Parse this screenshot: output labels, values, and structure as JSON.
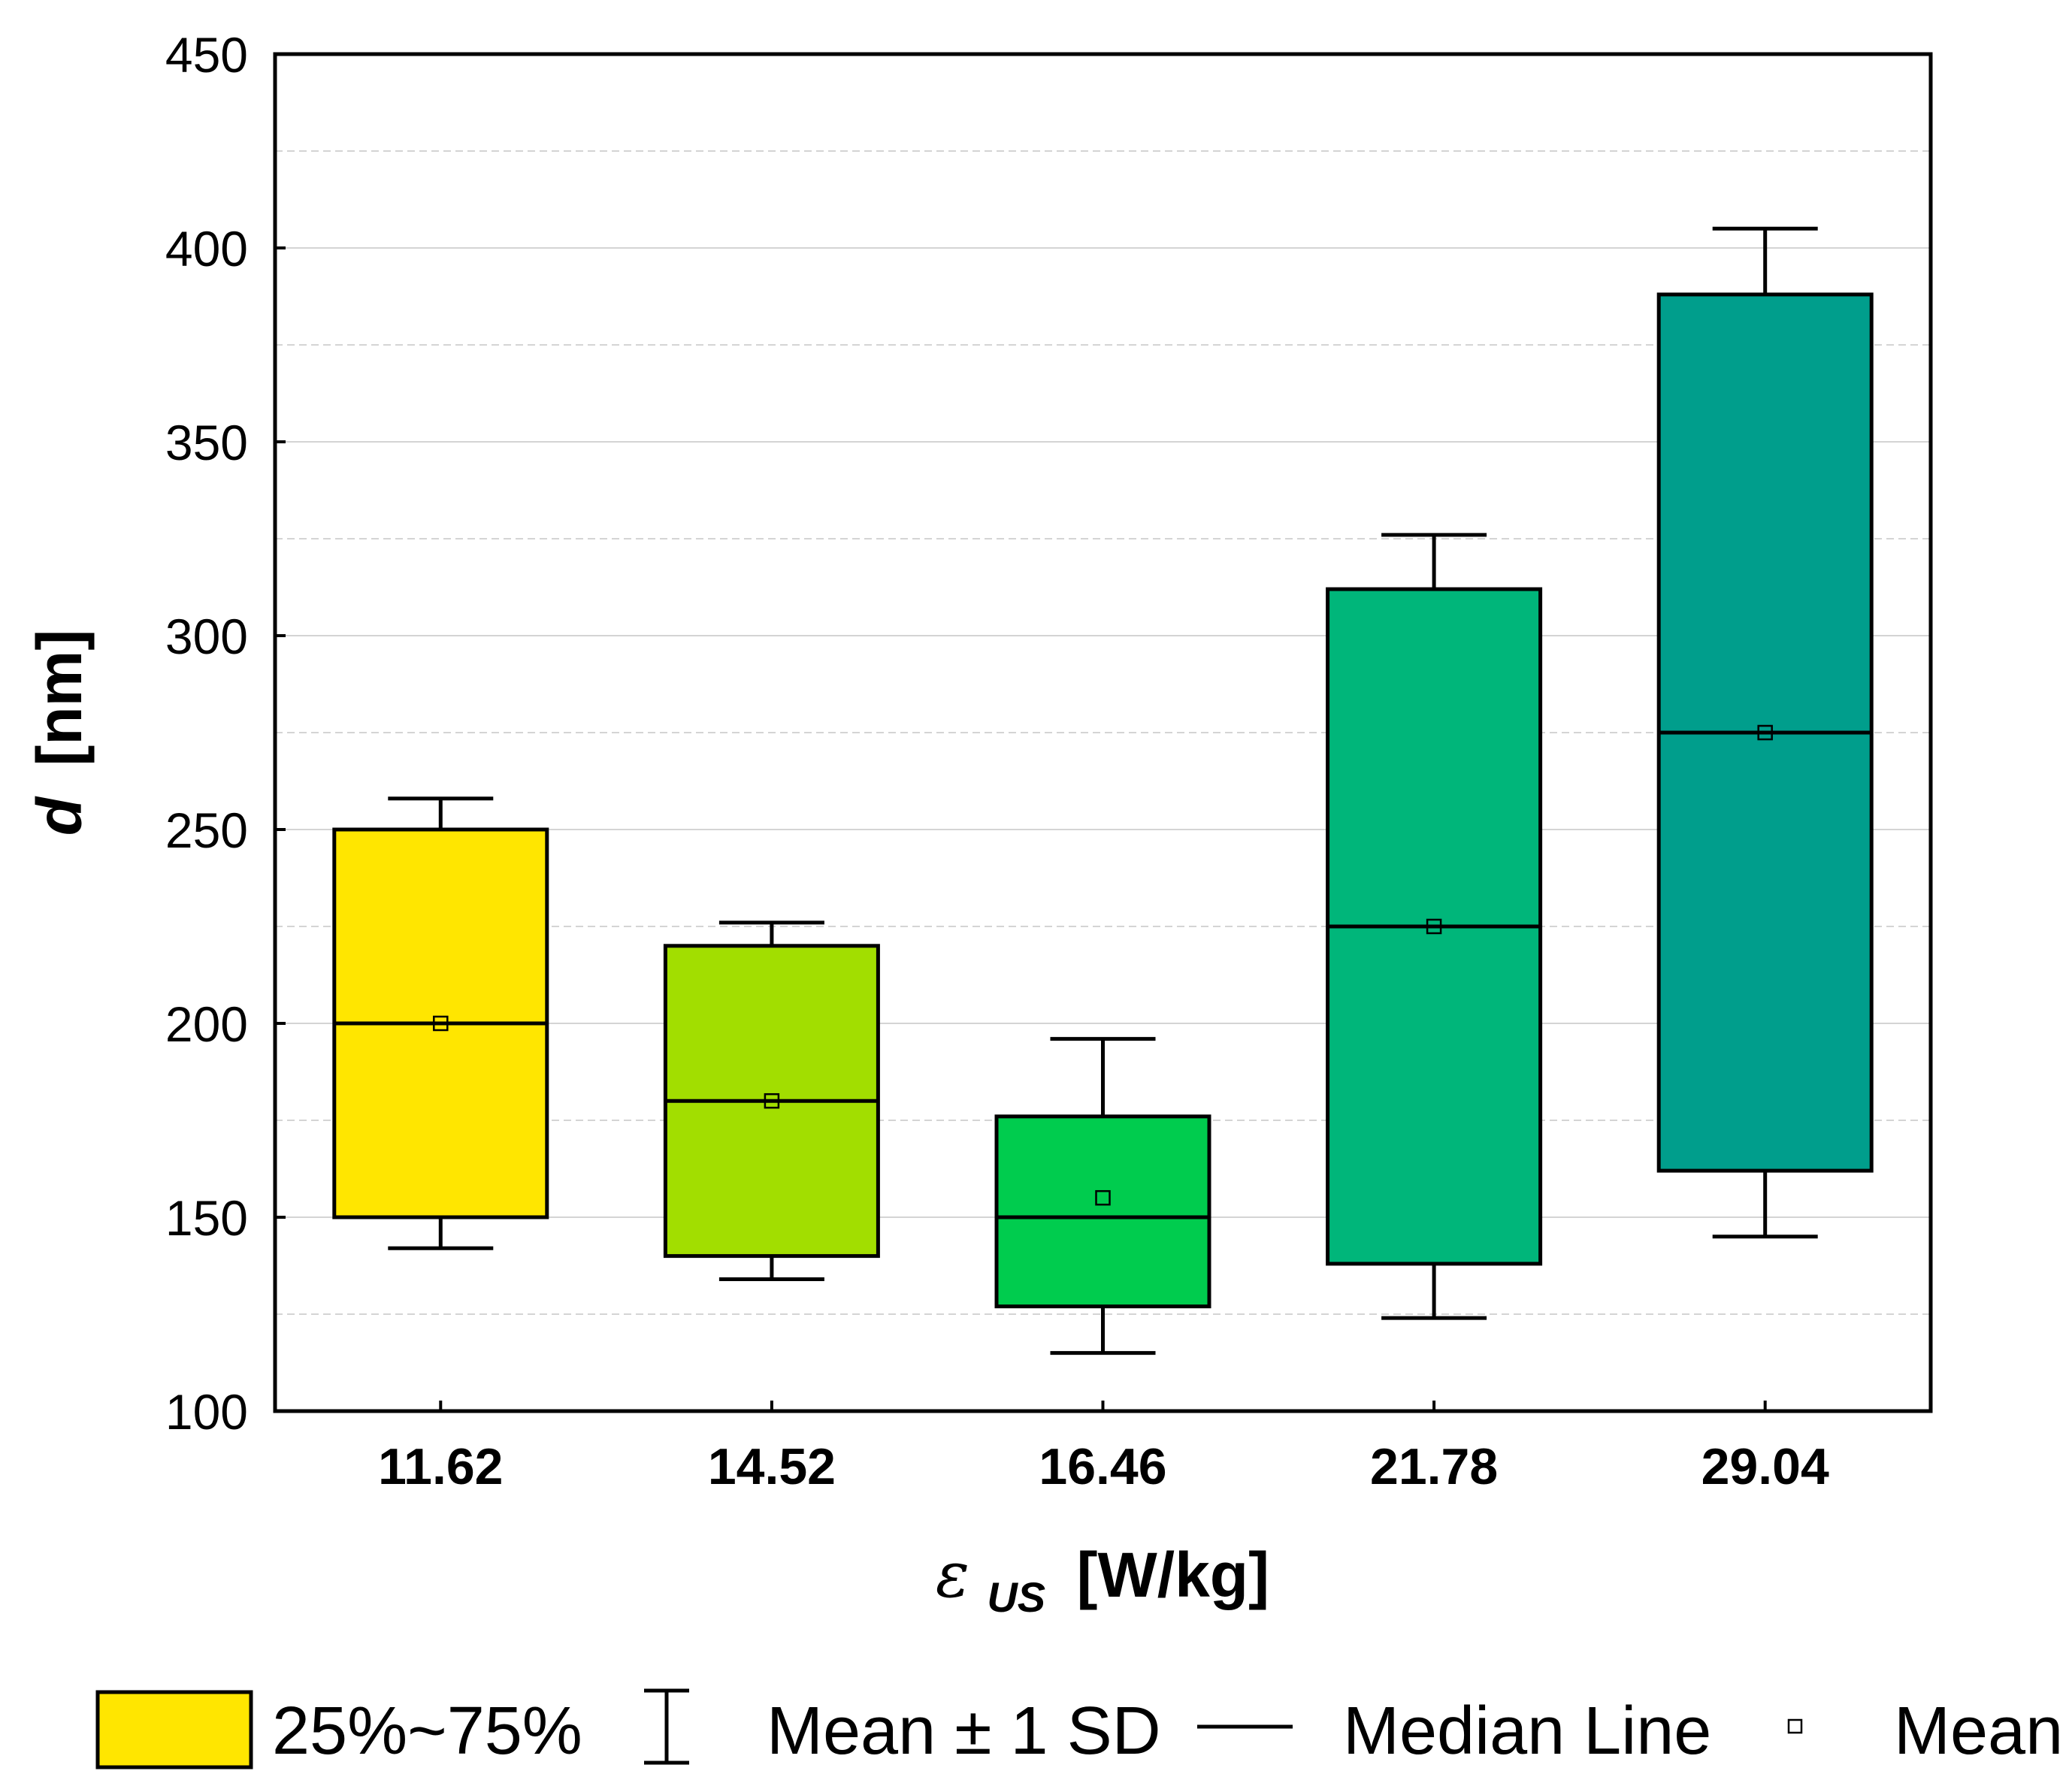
{
  "chart_data": {
    "type": "box",
    "categories": [
      "11.62",
      "14.52",
      "16.46",
      "21.78",
      "29.04"
    ],
    "colors": [
      "#FFE600",
      "#A2DE00",
      "#00CC4E",
      "#00B67A",
      "#009E8C"
    ],
    "boxes": [
      {
        "q1": 150,
        "q3": 250,
        "median": 200,
        "mean": 200,
        "sd_low": 142,
        "sd_high": 258
      },
      {
        "q1": 140,
        "q3": 220,
        "median": 180,
        "mean": 180,
        "sd_low": 134,
        "sd_high": 226
      },
      {
        "q1": 127,
        "q3": 176,
        "median": 150,
        "mean": 155,
        "sd_low": 115,
        "sd_high": 196
      },
      {
        "q1": 138,
        "q3": 312,
        "median": 225,
        "mean": 225,
        "sd_low": 124,
        "sd_high": 326
      },
      {
        "q1": 162,
        "q3": 388,
        "median": 275,
        "mean": 275,
        "sd_low": 145,
        "sd_high": 405
      }
    ],
    "ylim": [
      100,
      450
    ],
    "yticks": [
      100,
      150,
      200,
      250,
      300,
      350,
      400,
      450
    ],
    "ytick_labels": [
      "100",
      "150",
      "200",
      "250",
      "300",
      "350",
      "400",
      "450"
    ],
    "ylabel_main": "d",
    "ylabel_unit": "[nm]",
    "xlabel_symbol": "ε",
    "xlabel_subscript": "US",
    "xlabel_unit": "[W/kg]",
    "grid": true,
    "legend": {
      "position": "bottom",
      "box_label": "25%~75%",
      "sd_label": "Mean ± 1 SD",
      "median_label": "Median Line",
      "mean_label": "Mean"
    }
  }
}
